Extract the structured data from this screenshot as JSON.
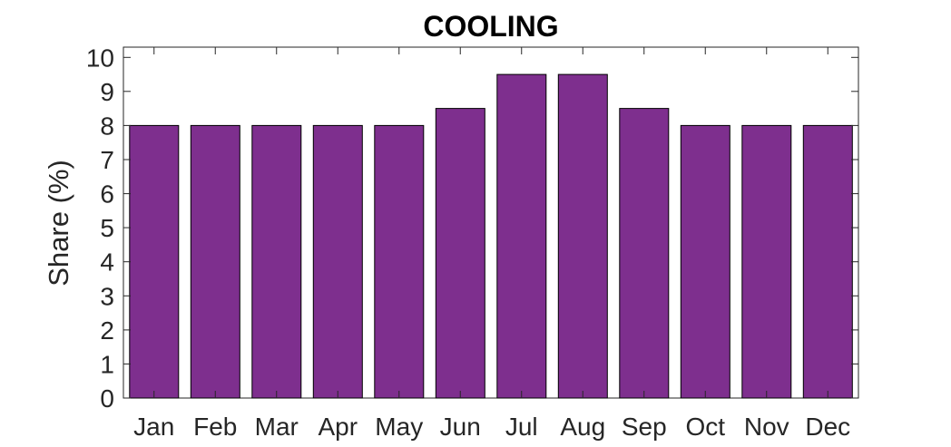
{
  "chart_data": {
    "type": "bar",
    "title": "COOLING",
    "xlabel": "",
    "ylabel": "Share (%)",
    "categories": [
      "Jan",
      "Feb",
      "Mar",
      "Apr",
      "May",
      "Jun",
      "Jul",
      "Aug",
      "Sep",
      "Oct",
      "Nov",
      "Dec"
    ],
    "values": [
      8,
      8,
      8,
      8,
      8,
      8.5,
      9.5,
      9.5,
      8.5,
      8,
      8,
      8
    ],
    "ylim": [
      0,
      10.3
    ],
    "yticks": [
      "0",
      "1",
      "2",
      "3",
      "4",
      "5",
      "6",
      "7",
      "8",
      "9",
      "10"
    ],
    "grid": false,
    "bar_color": "#7e2f8e",
    "edge_color": "#000000"
  }
}
